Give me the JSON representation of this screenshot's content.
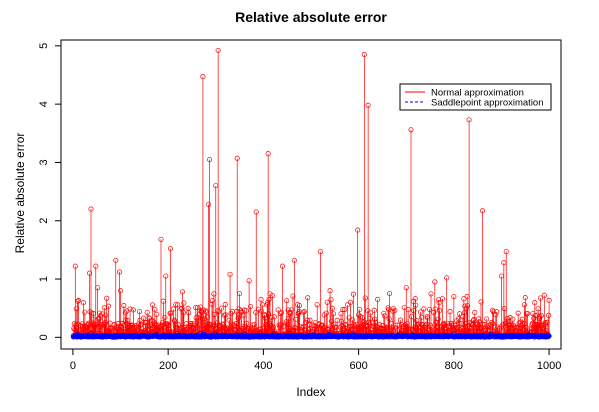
{
  "chart_data": {
    "type": "line",
    "title": "Relative absolute error",
    "xlabel": "Index",
    "ylabel": "Relative absolute error",
    "xlim": [
      -25,
      1025
    ],
    "ylim": [
      -0.2,
      5.1
    ],
    "xticks": [
      0,
      200,
      400,
      600,
      800,
      1000
    ],
    "yticks": [
      0,
      1,
      2,
      3,
      4,
      5
    ],
    "xtick_labels": [
      "0",
      "200",
      "400",
      "600",
      "800",
      "1000"
    ],
    "ytick_labels": [
      "0",
      "1",
      "2",
      "3",
      "4",
      "5"
    ],
    "grid": false,
    "legend_position": "top-right",
    "legend_style": "lines",
    "n_points": 1000,
    "series": [
      {
        "name": "Normal approximation",
        "color": "#ff0000",
        "style": "vertical lines with open circle markers",
        "baseline_level": 0.15,
        "peaks": [
          [
            5,
            1.22
          ],
          [
            10,
            0.62
          ],
          [
            35,
            1.1
          ],
          [
            38,
            2.2
          ],
          [
            48,
            1.22
          ],
          [
            52,
            0.85
          ],
          [
            90,
            1.32
          ],
          [
            98,
            1.12
          ],
          [
            100,
            0.8
          ],
          [
            185,
            1.68
          ],
          [
            195,
            1.05
          ],
          [
            205,
            1.52
          ],
          [
            230,
            0.78
          ],
          [
            268,
            0.52
          ],
          [
            273,
            4.47
          ],
          [
            285,
            2.28
          ],
          [
            287,
            3.05
          ],
          [
            300,
            2.6
          ],
          [
            305,
            4.92
          ],
          [
            330,
            1.08
          ],
          [
            345,
            3.07
          ],
          [
            350,
            0.75
          ],
          [
            370,
            0.97
          ],
          [
            385,
            2.15
          ],
          [
            395,
            0.65
          ],
          [
            410,
            3.15
          ],
          [
            440,
            1.22
          ],
          [
            465,
            1.32
          ],
          [
            520,
            1.47
          ],
          [
            540,
            0.8
          ],
          [
            598,
            1.84
          ],
          [
            612,
            4.85
          ],
          [
            620,
            3.98
          ],
          [
            640,
            0.65
          ],
          [
            665,
            0.75
          ],
          [
            700,
            0.85
          ],
          [
            710,
            3.56
          ],
          [
            720,
            0.55
          ],
          [
            760,
            0.95
          ],
          [
            785,
            1.02
          ],
          [
            800,
            0.7
          ],
          [
            832,
            3.73
          ],
          [
            860,
            2.17
          ],
          [
            900,
            1.05
          ],
          [
            905,
            1.28
          ],
          [
            910,
            1.47
          ],
          [
            950,
            0.68
          ],
          [
            990,
            0.72
          ]
        ]
      },
      {
        "name": "Saddlepoint approximation",
        "color": "#0000ff",
        "style": "vertical lines with open circle markers",
        "baseline_level": 0.02,
        "peaks": []
      }
    ]
  }
}
